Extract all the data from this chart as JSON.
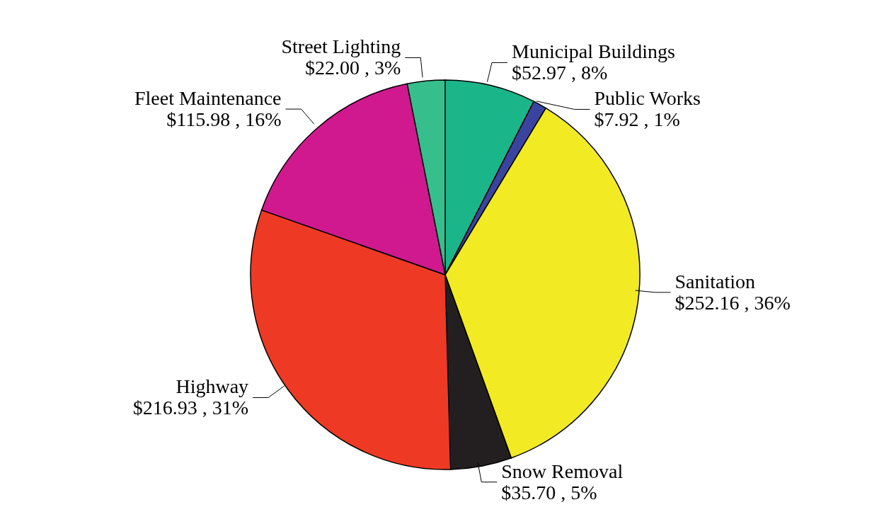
{
  "chart_data": {
    "type": "pie",
    "categories": [
      "Municipal Buildings",
      "Public Works",
      "Sanitation",
      "Snow Removal",
      "Highway",
      "Fleet Maintenance",
      "Street Lighting"
    ],
    "values": [
      52.97,
      7.92,
      252.16,
      35.7,
      216.93,
      115.98,
      22.0
    ],
    "colors": [
      "#1ab68a",
      "#3a44a0",
      "#f2ea22",
      "#231f20",
      "#ee3a24",
      "#d0198e",
      "#36bf8c"
    ],
    "value_labels": [
      "$52.97 , 8%",
      "$7.92 , 1%",
      "$252.16 , 36%",
      "$35.70 , 5%",
      "$216.93 , 31%",
      "$115.98 , 16%",
      "$22.00 , 3%"
    ]
  }
}
